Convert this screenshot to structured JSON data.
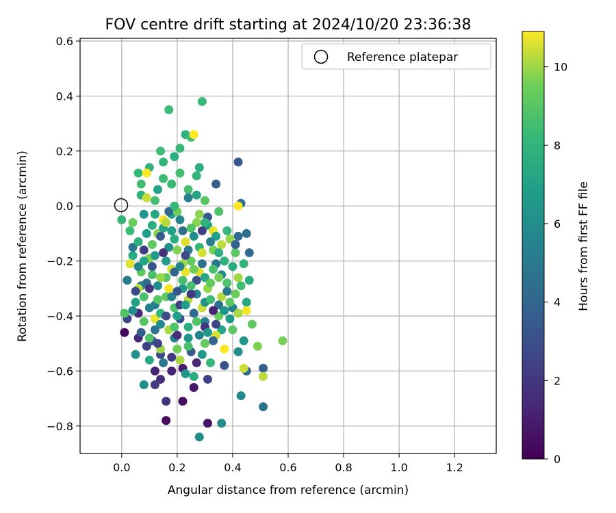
{
  "chart_data": {
    "type": "scatter",
    "title": "FOV centre drift starting at 2024/10/20 23:36:38",
    "xlabel": "Angular distance from reference (arcmin)",
    "ylabel": "Rotation from reference (arcmin)",
    "xlim": [
      -0.15,
      1.35
    ],
    "ylim": [
      -0.9,
      0.61
    ],
    "x_ticks": [
      "0.0",
      "0.2",
      "0.4",
      "0.6",
      "0.8",
      "1.0",
      "1.2"
    ],
    "y_ticks": [
      "0.6",
      "0.4",
      "0.2",
      "0.0",
      "−0.2",
      "−0.4",
      "−0.6",
      "−0.8"
    ],
    "grid": true,
    "legend": {
      "placement": "top-right",
      "entries": [
        "Reference platepar"
      ]
    },
    "reference_point": {
      "x": 0.0,
      "y": 0.0
    },
    "colorbar": {
      "label": "Hours from first FF file",
      "range": [
        0,
        10.9
      ],
      "ticks": [
        "0",
        "2",
        "4",
        "6",
        "8",
        "10"
      ],
      "colormap": "viridis"
    },
    "points": [
      {
        "x": 0.01,
        "y": -0.46,
        "c": 0.2
      },
      {
        "x": 0.16,
        "y": -0.78,
        "c": 0.3
      },
      {
        "x": 0.22,
        "y": -0.71,
        "c": 0.5
      },
      {
        "x": 0.31,
        "y": -0.79,
        "c": 0.6
      },
      {
        "x": 0.26,
        "y": -0.66,
        "c": 0.8
      },
      {
        "x": 0.22,
        "y": -0.59,
        "c": 1.0
      },
      {
        "x": 0.18,
        "y": -0.6,
        "c": 1.3
      },
      {
        "x": 0.06,
        "y": -0.48,
        "c": 1.5
      },
      {
        "x": 0.14,
        "y": -0.63,
        "c": 1.7
      },
      {
        "x": 0.16,
        "y": -0.71,
        "c": 1.9
      },
      {
        "x": 0.12,
        "y": -0.65,
        "c": 2.1
      },
      {
        "x": 0.31,
        "y": -0.63,
        "c": 2.3
      },
      {
        "x": 0.09,
        "y": -0.51,
        "c": 2.5
      },
      {
        "x": 0.02,
        "y": -0.41,
        "c": 2.6
      },
      {
        "x": 0.14,
        "y": -0.54,
        "c": 2.8
      },
      {
        "x": 0.21,
        "y": -0.41,
        "c": 3.0
      },
      {
        "x": 0.11,
        "y": -0.49,
        "c": 3.2
      },
      {
        "x": 0.42,
        "y": 0.16,
        "c": 3.4
      },
      {
        "x": 0.34,
        "y": 0.08,
        "c": 3.6
      },
      {
        "x": 0.51,
        "y": -0.59,
        "c": 3.8
      },
      {
        "x": 0.45,
        "y": -0.6,
        "c": 4.0
      },
      {
        "x": 0.46,
        "y": -0.17,
        "c": 4.2
      },
      {
        "x": 0.42,
        "y": -0.11,
        "c": 4.3
      },
      {
        "x": 0.45,
        "y": -0.1,
        "c": 4.4
      },
      {
        "x": 0.43,
        "y": 0.01,
        "c": 4.5
      },
      {
        "x": 0.51,
        "y": -0.73,
        "c": 4.7
      },
      {
        "x": 0.34,
        "y": -0.21,
        "c": 4.8
      },
      {
        "x": 0.24,
        "y": -0.16,
        "c": 5.0
      },
      {
        "x": 0.02,
        "y": -0.27,
        "c": 5.1
      },
      {
        "x": 0.12,
        "y": -0.36,
        "c": 5.2
      },
      {
        "x": 0.3,
        "y": -0.42,
        "c": 5.3
      },
      {
        "x": 0.4,
        "y": -0.37,
        "c": 5.4
      },
      {
        "x": 0.07,
        "y": -0.29,
        "c": 5.5
      },
      {
        "x": 0.19,
        "y": -0.48,
        "c": 5.6
      },
      {
        "x": 0.27,
        "y": -0.32,
        "c": 5.7
      },
      {
        "x": 0.43,
        "y": -0.69,
        "c": 5.8
      },
      {
        "x": 0.36,
        "y": -0.79,
        "c": 5.9
      },
      {
        "x": 0.28,
        "y": -0.84,
        "c": 6.0
      },
      {
        "x": 0.08,
        "y": -0.65,
        "c": 6.1
      },
      {
        "x": 0.05,
        "y": -0.54,
        "c": 6.2
      },
      {
        "x": 0.24,
        "y": -0.48,
        "c": 6.3
      },
      {
        "x": 0.44,
        "y": -0.49,
        "c": 6.4
      },
      {
        "x": 0.29,
        "y": -0.54,
        "c": 6.5
      },
      {
        "x": 0.16,
        "y": -0.2,
        "c": 6.6
      },
      {
        "x": 0.22,
        "y": -0.3,
        "c": 6.7
      },
      {
        "x": 0.09,
        "y": -0.1,
        "c": 6.8
      },
      {
        "x": 0.31,
        "y": -0.07,
        "c": 6.9
      },
      {
        "x": 0.18,
        "y": -0.03,
        "c": 7.0
      },
      {
        "x": 0.13,
        "y": 0.06,
        "c": 7.1
      },
      {
        "x": 0.36,
        "y": -0.45,
        "c": 7.2
      },
      {
        "x": 0.45,
        "y": -0.35,
        "c": 7.3
      },
      {
        "x": 0.26,
        "y": -0.62,
        "c": 7.4
      },
      {
        "x": 0.04,
        "y": -0.18,
        "c": 7.5
      },
      {
        "x": 0.28,
        "y": 0.14,
        "c": 7.6
      },
      {
        "x": 0.19,
        "y": 0.18,
        "c": 7.7
      },
      {
        "x": 0.23,
        "y": 0.26,
        "c": 7.8
      },
      {
        "x": 0.1,
        "y": 0.14,
        "c": 7.9
      },
      {
        "x": 0.0,
        "y": -0.05,
        "c": 8.0
      },
      {
        "x": 0.15,
        "y": 0.16,
        "c": 8.1
      },
      {
        "x": 0.06,
        "y": 0.12,
        "c": 8.2
      },
      {
        "x": 0.21,
        "y": 0.21,
        "c": 8.3
      },
      {
        "x": 0.29,
        "y": 0.38,
        "c": 8.3
      },
      {
        "x": 0.17,
        "y": 0.35,
        "c": 8.4
      },
      {
        "x": 0.14,
        "y": 0.2,
        "c": 8.4
      },
      {
        "x": 0.25,
        "y": 0.25,
        "c": 8.5
      },
      {
        "x": 0.21,
        "y": 0.12,
        "c": 8.5
      },
      {
        "x": 0.24,
        "y": 0.06,
        "c": 8.6
      },
      {
        "x": 0.12,
        "y": 0.02,
        "c": 8.6
      },
      {
        "x": 0.33,
        "y": -0.23,
        "c": 8.7
      },
      {
        "x": 0.08,
        "y": -0.33,
        "c": 8.7
      },
      {
        "x": 0.19,
        "y": -0.37,
        "c": 8.8
      },
      {
        "x": 0.38,
        "y": -0.28,
        "c": 8.8
      },
      {
        "x": 0.27,
        "y": -0.42,
        "c": 8.9
      },
      {
        "x": 0.01,
        "y": -0.39,
        "c": 8.9
      },
      {
        "x": 0.16,
        "y": -0.26,
        "c": 9.0
      },
      {
        "x": 0.3,
        "y": 0.02,
        "c": 9.0
      },
      {
        "x": 0.07,
        "y": -0.24,
        "c": 9.1
      },
      {
        "x": 0.41,
        "y": -0.17,
        "c": 9.1
      },
      {
        "x": 0.11,
        "y": -0.14,
        "c": 9.2
      },
      {
        "x": 0.25,
        "y": -0.2,
        "c": 9.3
      },
      {
        "x": 0.35,
        "y": -0.4,
        "c": 9.4
      },
      {
        "x": 0.2,
        "y": -0.52,
        "c": 9.5
      },
      {
        "x": 0.58,
        "y": -0.49,
        "c": 9.6
      },
      {
        "x": 0.49,
        "y": -0.51,
        "c": 9.7
      },
      {
        "x": 0.13,
        "y": -0.1,
        "c": 9.8
      },
      {
        "x": 0.31,
        "y": -0.3,
        "c": 9.9
      },
      {
        "x": 0.42,
        "y": -0.26,
        "c": 10.0
      },
      {
        "x": 0.17,
        "y": -0.45,
        "c": 10.1
      },
      {
        "x": 0.24,
        "y": -0.34,
        "c": 10.2
      },
      {
        "x": 0.51,
        "y": -0.62,
        "c": 10.3
      },
      {
        "x": 0.44,
        "y": -0.59,
        "c": 10.4
      },
      {
        "x": 0.34,
        "y": -0.47,
        "c": 10.5
      },
      {
        "x": 0.28,
        "y": -0.24,
        "c": 10.6
      },
      {
        "x": 0.33,
        "y": -0.09,
        "c": 10.7
      },
      {
        "x": 0.15,
        "y": -0.05,
        "c": 10.8
      },
      {
        "x": 0.42,
        "y": 0.0,
        "c": 10.9
      },
      {
        "x": 0.26,
        "y": 0.26,
        "c": 10.9
      },
      {
        "x": 0.09,
        "y": 0.12,
        "c": 10.9
      },
      {
        "x": 0.37,
        "y": -0.52,
        "c": 10.9
      },
      {
        "x": 0.45,
        "y": -0.38,
        "c": 10.8
      },
      {
        "x": 0.12,
        "y": -0.41,
        "c": 10.7
      },
      {
        "x": 0.23,
        "y": -0.13,
        "c": 10.6
      },
      {
        "x": 0.18,
        "y": -0.23,
        "c": 10.5
      },
      {
        "x": 0.29,
        "y": -0.37,
        "c": 10.4
      },
      {
        "x": 0.06,
        "y": -0.3,
        "c": 10.3
      },
      {
        "x": 0.36,
        "y": -0.33,
        "c": 10.2
      },
      {
        "x": 0.21,
        "y": -0.56,
        "c": 10.1
      },
      {
        "x": 0.14,
        "y": -0.52,
        "c": 10.0
      },
      {
        "x": 0.39,
        "y": -0.12,
        "c": 9.9
      },
      {
        "x": 0.27,
        "y": -0.06,
        "c": 9.8
      },
      {
        "x": 0.1,
        "y": -0.19,
        "c": 9.7
      },
      {
        "x": 0.33,
        "y": -0.16,
        "c": 9.6
      },
      {
        "x": 0.2,
        "y": -0.02,
        "c": 9.5
      },
      {
        "x": 0.04,
        "y": -0.06,
        "c": 9.4
      },
      {
        "x": 0.3,
        "y": -0.5,
        "c": 9.3
      },
      {
        "x": 0.16,
        "y": -0.33,
        "c": 9.2
      },
      {
        "x": 0.4,
        "y": -0.45,
        "c": 9.1
      },
      {
        "x": 0.08,
        "y": -0.42,
        "c": 9.0
      },
      {
        "x": 0.25,
        "y": -0.08,
        "c": 8.9
      },
      {
        "x": 0.35,
        "y": -0.02,
        "c": 8.8
      },
      {
        "x": 0.11,
        "y": -0.25,
        "c": 8.7
      },
      {
        "x": 0.22,
        "y": -0.27,
        "c": 8.6
      },
      {
        "x": 0.43,
        "y": -0.29,
        "c": 8.5
      },
      {
        "x": 0.03,
        "y": -0.09,
        "c": 8.4
      },
      {
        "x": 0.18,
        "y": 0.08,
        "c": 8.3
      },
      {
        "x": 0.32,
        "y": -0.57,
        "c": 8.2
      },
      {
        "x": 0.28,
        "y": -0.15,
        "c": 8.1
      },
      {
        "x": 0.14,
        "y": -0.39,
        "c": 8.0
      },
      {
        "x": 0.37,
        "y": -0.2,
        "c": 7.9
      },
      {
        "x": 0.07,
        "y": 0.04,
        "c": 7.8
      },
      {
        "x": 0.24,
        "y": -0.44,
        "c": 7.7
      },
      {
        "x": 0.19,
        "y": -0.12,
        "c": 7.6
      },
      {
        "x": 0.46,
        "y": -0.27,
        "c": 7.5
      },
      {
        "x": 0.1,
        "y": -0.56,
        "c": 7.4
      },
      {
        "x": 0.3,
        "y": -0.26,
        "c": 7.3
      },
      {
        "x": 0.15,
        "y": -0.08,
        "c": 7.2
      },
      {
        "x": 0.27,
        "y": 0.04,
        "c": 7.1
      },
      {
        "x": 0.05,
        "y": -0.35,
        "c": 7.0
      },
      {
        "x": 0.34,
        "y": -0.11,
        "c": 6.9
      },
      {
        "x": 0.2,
        "y": -0.4,
        "c": 6.8
      },
      {
        "x": 0.12,
        "y": -0.18,
        "c": 6.7
      },
      {
        "x": 0.39,
        "y": -0.41,
        "c": 6.6
      },
      {
        "x": 0.23,
        "y": -0.61,
        "c": 6.5
      },
      {
        "x": 0.08,
        "y": -0.03,
        "c": 6.4
      },
      {
        "x": 0.3,
        "y": -0.35,
        "c": 6.3
      },
      {
        "x": 0.17,
        "y": -0.15,
        "c": 6.2
      },
      {
        "x": 0.42,
        "y": -0.53,
        "c": 6.1
      },
      {
        "x": 0.26,
        "y": -0.11,
        "c": 6.0
      },
      {
        "x": 0.13,
        "y": -0.29,
        "c": 5.9
      },
      {
        "x": 0.36,
        "y": -0.25,
        "c": 5.8
      },
      {
        "x": 0.21,
        "y": -0.05,
        "c": 5.7
      },
      {
        "x": 0.06,
        "y": -0.22,
        "c": 5.6
      },
      {
        "x": 0.28,
        "y": -0.47,
        "c": 5.5
      },
      {
        "x": 0.18,
        "y": -0.33,
        "c": 5.4
      },
      {
        "x": 0.1,
        "y": -0.37,
        "c": 5.3
      },
      {
        "x": 0.32,
        "y": -0.13,
        "c": 5.2
      },
      {
        "x": 0.24,
        "y": 0.03,
        "c": 5.1
      },
      {
        "x": 0.15,
        "y": -0.57,
        "c": 5.0
      },
      {
        "x": 0.38,
        "y": -0.31,
        "c": 4.9
      },
      {
        "x": 0.04,
        "y": -0.15,
        "c": 4.8
      },
      {
        "x": 0.29,
        "y": -0.21,
        "c": 4.7
      },
      {
        "x": 0.12,
        "y": -0.45,
        "c": 4.6
      },
      {
        "x": 0.22,
        "y": -0.09,
        "c": 4.5
      },
      {
        "x": 0.35,
        "y": -0.36,
        "c": 4.4
      },
      {
        "x": 0.09,
        "y": -0.28,
        "c": 4.3
      },
      {
        "x": 0.26,
        "y": -0.39,
        "c": 4.2
      },
      {
        "x": 0.17,
        "y": -0.02,
        "c": 4.1
      },
      {
        "x": 0.33,
        "y": -0.49,
        "c": 4.0
      },
      {
        "x": 0.19,
        "y": -0.24,
        "c": 3.9
      },
      {
        "x": 0.41,
        "y": -0.14,
        "c": 3.8
      },
      {
        "x": 0.07,
        "y": -0.46,
        "c": 3.7
      },
      {
        "x": 0.25,
        "y": -0.53,
        "c": 3.6
      },
      {
        "x": 0.14,
        "y": -0.11,
        "c": 3.5
      },
      {
        "x": 0.31,
        "y": -0.04,
        "c": 3.4
      },
      {
        "x": 0.2,
        "y": -0.31,
        "c": 3.3
      },
      {
        "x": 0.11,
        "y": -0.22,
        "c": 3.2
      },
      {
        "x": 0.37,
        "y": -0.58,
        "c": 3.1
      },
      {
        "x": 0.27,
        "y": -0.27,
        "c": 3.0
      },
      {
        "x": 0.16,
        "y": -0.4,
        "c": 2.9
      },
      {
        "x": 0.05,
        "y": -0.31,
        "c": 2.8
      },
      {
        "x": 0.23,
        "y": -0.18,
        "c": 2.7
      },
      {
        "x": 0.34,
        "y": -0.43,
        "c": 2.6
      },
      {
        "x": 0.13,
        "y": -0.5,
        "c": 2.5
      },
      {
        "x": 0.21,
        "y": -0.36,
        "c": 2.4
      },
      {
        "x": 0.29,
        "y": -0.09,
        "c": 2.3
      },
      {
        "x": 0.08,
        "y": -0.16,
        "c": 2.2
      },
      {
        "x": 0.18,
        "y": -0.55,
        "c": 2.1
      },
      {
        "x": 0.25,
        "y": -0.32,
        "c": 2.0
      },
      {
        "x": 0.1,
        "y": -0.3,
        "c": 1.9
      },
      {
        "x": 0.3,
        "y": -0.44,
        "c": 1.8
      },
      {
        "x": 0.15,
        "y": -0.17,
        "c": 1.7
      },
      {
        "x": 0.2,
        "y": -0.47,
        "c": 1.6
      },
      {
        "x": 0.06,
        "y": -0.39,
        "c": 1.5
      },
      {
        "x": 0.27,
        "y": -0.57,
        "c": 1.4
      },
      {
        "x": 0.12,
        "y": -0.6,
        "c": 1.3
      },
      {
        "x": 0.33,
        "y": -0.38,
        "c": 1.2
      },
      {
        "x": 0.03,
        "y": -0.21,
        "c": 10.6
      },
      {
        "x": 0.09,
        "y": 0.03,
        "c": 10.4
      },
      {
        "x": 0.16,
        "y": -0.06,
        "c": 10.2
      },
      {
        "x": 0.22,
        "y": -0.21,
        "c": 10.0
      },
      {
        "x": 0.28,
        "y": -0.03,
        "c": 9.8
      },
      {
        "x": 0.35,
        "y": -0.26,
        "c": 9.6
      },
      {
        "x": 0.41,
        "y": -0.32,
        "c": 9.4
      },
      {
        "x": 0.47,
        "y": -0.43,
        "c": 9.2
      },
      {
        "x": 0.13,
        "y": -0.34,
        "c": 9.0
      },
      {
        "x": 0.19,
        "y": -0.44,
        "c": 8.8
      },
      {
        "x": 0.25,
        "y": -0.29,
        "c": 8.6
      },
      {
        "x": 0.32,
        "y": -0.34,
        "c": 8.4
      },
      {
        "x": 0.38,
        "y": -0.09,
        "c": 8.2
      },
      {
        "x": 0.44,
        "y": -0.21,
        "c": 8.0
      },
      {
        "x": 0.06,
        "y": -0.13,
        "c": 7.8
      },
      {
        "x": 0.11,
        "y": -0.07,
        "c": 7.6
      },
      {
        "x": 0.17,
        "y": -0.3,
        "c": 10.8
      },
      {
        "x": 0.23,
        "y": -0.24,
        "c": 10.7
      },
      {
        "x": 0.29,
        "y": -0.17,
        "c": 10.5
      },
      {
        "x": 0.36,
        "y": -0.14,
        "c": 10.3
      },
      {
        "x": 0.42,
        "y": -0.39,
        "c": 10.1
      },
      {
        "x": 0.14,
        "y": -0.26,
        "c": 9.9
      },
      {
        "x": 0.2,
        "y": -0.16,
        "c": 9.7
      },
      {
        "x": 0.26,
        "y": -0.23,
        "c": 9.5
      },
      {
        "x": 0.32,
        "y": -0.28,
        "c": 9.3
      },
      {
        "x": 0.39,
        "y": -0.35,
        "c": 9.1
      },
      {
        "x": 0.1,
        "y": -0.48,
        "c": 8.9
      },
      {
        "x": 0.24,
        "y": -0.51,
        "c": 8.7
      },
      {
        "x": 0.07,
        "y": 0.08,
        "c": 8.5
      },
      {
        "x": 0.15,
        "y": 0.1,
        "c": 8.4
      },
      {
        "x": 0.19,
        "y": 0.0,
        "c": 8.2
      },
      {
        "x": 0.27,
        "y": 0.11,
        "c": 8.0
      },
      {
        "x": 0.3,
        "y": -0.06,
        "c": 7.9
      },
      {
        "x": 0.35,
        "y": -0.17,
        "c": 7.7
      },
      {
        "x": 0.4,
        "y": -0.22,
        "c": 7.5
      },
      {
        "x": 0.12,
        "y": -0.03,
        "c": 7.3
      },
      {
        "x": 0.08,
        "y": -0.2,
        "c": 7.1
      },
      {
        "x": 0.18,
        "y": -0.09,
        "c": 6.9
      },
      {
        "x": 0.23,
        "y": -0.36,
        "c": 6.7
      },
      {
        "x": 0.31,
        "y": -0.46,
        "c": 6.5
      },
      {
        "x": 0.37,
        "y": -0.38,
        "c": 6.3
      },
      {
        "x": 0.04,
        "y": -0.38,
        "c": 6.1
      },
      {
        "x": 0.14,
        "y": -0.43,
        "c": 5.9
      },
      {
        "x": 0.21,
        "y": -0.22,
        "c": 5.7
      }
    ]
  }
}
